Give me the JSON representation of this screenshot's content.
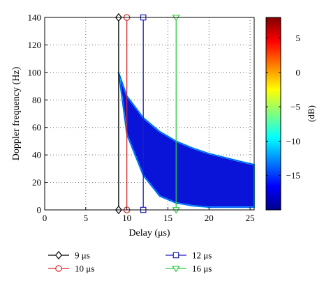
{
  "chart_data": {
    "type": "heatmap",
    "xlabel": "Delay (μs)",
    "ylabel": "Doppler frequency (Hz)",
    "xlim": [
      0,
      25.5
    ],
    "ylim": [
      0,
      140
    ],
    "xticks": [
      0,
      5,
      10,
      15,
      20,
      25
    ],
    "yticks": [
      0,
      20,
      40,
      60,
      80,
      100,
      120,
      140
    ],
    "grid": true,
    "colorbar": {
      "label": "(dB)",
      "range": [
        -20,
        8
      ],
      "ticks": [
        5,
        0,
        -5,
        -10,
        -15
      ],
      "tick_labels": [
        "5",
        "0",
        "−5",
        "−10",
        "−15"
      ]
    },
    "region": {
      "description_value_db": -18,
      "start_delay": 9,
      "start_doppler": 100,
      "upper_boundary": {
        "x": [
          9,
          10,
          12,
          14,
          16,
          18,
          20,
          22,
          24,
          25.5
        ],
        "y": [
          100,
          83,
          67,
          57,
          50,
          45,
          41,
          38,
          35,
          33
        ]
      },
      "lower_boundary": {
        "x": [
          9,
          10,
          12,
          14,
          16,
          18,
          20,
          22,
          24,
          25.5
        ],
        "y": [
          100,
          55,
          25,
          10,
          5,
          3,
          2,
          2,
          2,
          2
        ]
      }
    },
    "series": [
      {
        "name": "9 μs",
        "delay": 9,
        "color": "#000000",
        "marker": "diamond"
      },
      {
        "name": "10 μs",
        "delay": 10,
        "color": "#d62728",
        "marker": "circle"
      },
      {
        "name": "12 μs",
        "delay": 12,
        "color": "#1f1fbf",
        "marker": "square"
      },
      {
        "name": "16 μs",
        "delay": 16,
        "color": "#2ecc40",
        "marker": "triangle-down"
      }
    ],
    "legend_placement": "bottom"
  }
}
